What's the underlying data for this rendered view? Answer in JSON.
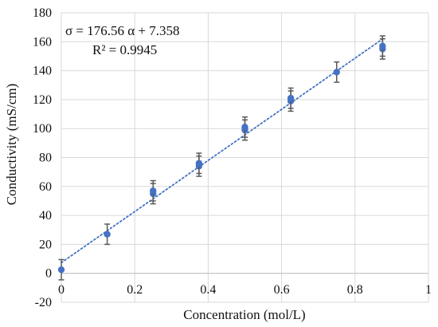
{
  "chart_data": {
    "type": "scatter",
    "title": "",
    "xlabel": "Concentration (mol/L)",
    "ylabel": "Conductivity (mS/cm)",
    "xlim": [
      0,
      1
    ],
    "ylim": [
      -20,
      180
    ],
    "x_ticks": [
      "0",
      "0.2",
      "0.4",
      "0.6",
      "0.8",
      "1"
    ],
    "y_ticks": [
      "-20",
      "0",
      "20",
      "40",
      "60",
      "80",
      "100",
      "120",
      "140",
      "160",
      "180"
    ],
    "grid": true,
    "legend": "none",
    "series": [
      {
        "points": [
          {
            "x": 0.0,
            "y": 2.5,
            "err": 7
          },
          {
            "x": 0.125,
            "y": 27,
            "err": 7
          },
          {
            "x": 0.25,
            "y": 55,
            "err": 7
          },
          {
            "x": 0.25,
            "y": 57,
            "err": 7
          },
          {
            "x": 0.375,
            "y": 74,
            "err": 7
          },
          {
            "x": 0.375,
            "y": 76,
            "err": 7
          },
          {
            "x": 0.5,
            "y": 99,
            "err": 7
          },
          {
            "x": 0.5,
            "y": 101,
            "err": 7
          },
          {
            "x": 0.625,
            "y": 119,
            "err": 7
          },
          {
            "x": 0.625,
            "y": 121,
            "err": 7
          },
          {
            "x": 0.75,
            "y": 139,
            "err": 7
          },
          {
            "x": 0.875,
            "y": 155,
            "err": 7
          },
          {
            "x": 0.875,
            "y": 157,
            "err": 7
          }
        ],
        "marker_color": "#4472c4",
        "errorbar_color": "#595959"
      }
    ],
    "trendline": {
      "slope": 176.56,
      "intercept": 7.358,
      "x_range": [
        0,
        0.875
      ],
      "color": "#4472c4",
      "style": "dotted"
    },
    "annotation": {
      "equation": "σ = 176.56 α + 7.358",
      "r2": "R² = 0.9945"
    }
  }
}
